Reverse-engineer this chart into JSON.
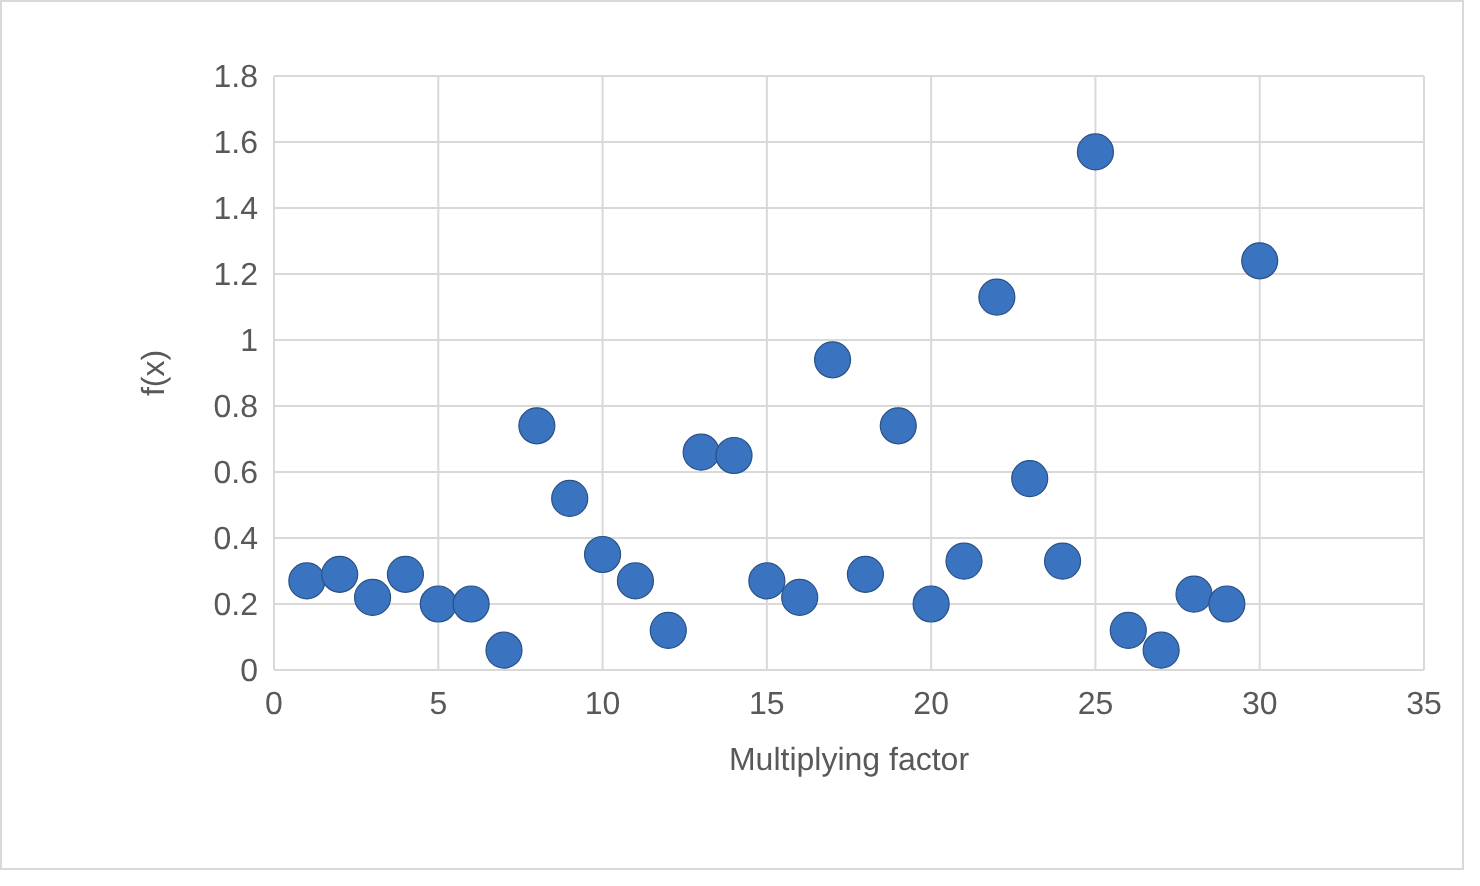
{
  "chart_data": {
    "type": "scatter",
    "xlabel": "Multiplying factor",
    "ylabel": "f(x)",
    "x": [
      1,
      2,
      3,
      4,
      5,
      6,
      7,
      8,
      9,
      10,
      11,
      12,
      13,
      14,
      15,
      16,
      17,
      18,
      19,
      20,
      21,
      22,
      23,
      24,
      25,
      26,
      27,
      28,
      29,
      30
    ],
    "series": [
      {
        "color": "#3a73c0",
        "values": [
          0.27,
          0.29,
          0.22,
          0.29,
          0.2,
          0.2,
          0.06,
          0.74,
          0.52,
          0.35,
          0.27,
          0.12,
          0.66,
          0.65,
          0.27,
          0.22,
          0.94,
          0.29,
          0.74,
          0.2,
          0.33,
          1.13,
          0.58,
          0.33,
          1.57,
          0.12,
          0.06,
          0.23,
          0.2,
          1.24
        ]
      }
    ],
    "xlim": [
      0,
      35
    ],
    "xticks": [
      0,
      5,
      10,
      15,
      20,
      25,
      30,
      35
    ],
    "ylim": [
      0,
      1.8
    ],
    "yticks": [
      0,
      0.2,
      0.4,
      0.6,
      0.8,
      1,
      1.2,
      1.4,
      1.6,
      1.8
    ],
    "grid": true,
    "marker": "circle"
  }
}
